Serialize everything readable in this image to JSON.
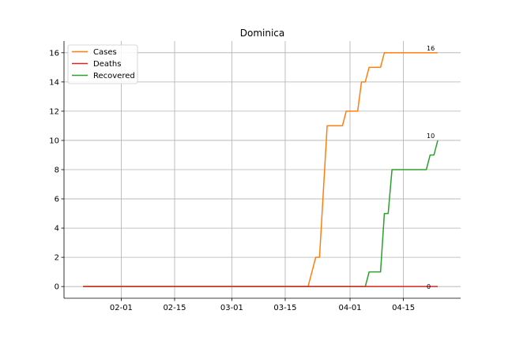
{
  "chart_data": {
    "type": "line",
    "title": "Dominica",
    "xlabel": "",
    "ylabel": "",
    "x_start": "2020-01-22",
    "x_ticks": [
      "2020-02-01",
      "2020-02-15",
      "2020-03-01",
      "2020-03-15",
      "2020-04-01",
      "2020-04-15"
    ],
    "x_tick_labels": [
      "02-01",
      "02-15",
      "03-01",
      "03-15",
      "04-01",
      "04-15"
    ],
    "xlim": [
      "2020-01-17",
      "2020-04-30"
    ],
    "ylim": [
      -0.8,
      16.8
    ],
    "y_ticks": [
      0,
      2,
      4,
      6,
      8,
      10,
      12,
      14,
      16
    ],
    "grid": true,
    "legend_position": "top-left",
    "series": [
      {
        "name": "Cases",
        "color": "#ff7f0e",
        "points": [
          [
            "2020-01-22",
            0
          ],
          [
            "2020-03-21",
            0
          ],
          [
            "2020-03-23",
            2
          ],
          [
            "2020-03-24",
            2
          ],
          [
            "2020-03-26",
            11
          ],
          [
            "2020-03-30",
            11
          ],
          [
            "2020-03-31",
            12
          ],
          [
            "2020-04-03",
            12
          ],
          [
            "2020-04-04",
            14
          ],
          [
            "2020-04-05",
            14
          ],
          [
            "2020-04-06",
            15
          ],
          [
            "2020-04-09",
            15
          ],
          [
            "2020-04-10",
            16
          ],
          [
            "2020-04-24",
            16
          ]
        ],
        "end_label": "16"
      },
      {
        "name": "Deaths",
        "color": "#d62728",
        "points": [
          [
            "2020-01-22",
            0
          ],
          [
            "2020-04-24",
            0
          ]
        ],
        "end_label": "0"
      },
      {
        "name": "Recovered",
        "color": "#2ca02c",
        "points": [
          [
            "2020-01-22",
            0
          ],
          [
            "2020-04-05",
            0
          ],
          [
            "2020-04-06",
            1
          ],
          [
            "2020-04-09",
            1
          ],
          [
            "2020-04-10",
            5
          ],
          [
            "2020-04-11",
            5
          ],
          [
            "2020-04-12",
            8
          ],
          [
            "2020-04-21",
            8
          ],
          [
            "2020-04-22",
            9
          ],
          [
            "2020-04-23",
            9
          ],
          [
            "2020-04-24",
            10
          ]
        ],
        "end_label": "10"
      }
    ]
  }
}
